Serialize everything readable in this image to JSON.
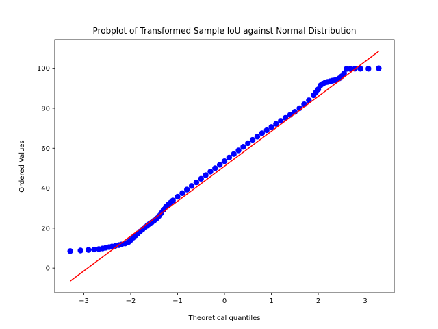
{
  "chart_data": {
    "type": "scatter",
    "title": "Probplot of Transformed Sample IoU against Normal Distribution",
    "xlabel": "Theoretical quantiles",
    "ylabel": "Ordered Values",
    "xlim": [
      -3.62,
      3.62
    ],
    "ylim": [
      -12.3,
      114.3
    ],
    "xticks": [
      -3,
      -2,
      -1,
      0,
      1,
      2,
      3
    ],
    "xtick_labels": [
      "−3",
      "−2",
      "−1",
      "0",
      "1",
      "2",
      "3"
    ],
    "yticks": [
      0,
      20,
      40,
      60,
      80,
      100
    ],
    "ytick_labels": [
      "0",
      "20",
      "40",
      "60",
      "80",
      "100"
    ],
    "grid": false,
    "series": [
      {
        "kind": "points",
        "color": "#0000ff",
        "x": [
          -3.29,
          -3.07,
          -2.9,
          -2.78,
          -2.68,
          -2.6,
          -2.53,
          -2.46,
          -2.4,
          -2.33,
          -2.25,
          -2.2,
          -2.12,
          -2.05,
          -2.0,
          -1.95,
          -1.9,
          -1.85,
          -1.8,
          -1.75,
          -1.7,
          -1.65,
          -1.6,
          -1.55,
          -1.5,
          -1.45,
          -1.4,
          -1.35,
          -1.3,
          -1.25,
          -1.2,
          -1.15,
          -1.1,
          -1.0,
          -0.9,
          -0.8,
          -0.7,
          -0.6,
          -0.5,
          -0.4,
          -0.3,
          -0.2,
          -0.1,
          0.0,
          0.1,
          0.2,
          0.3,
          0.4,
          0.5,
          0.6,
          0.7,
          0.8,
          0.9,
          1.0,
          1.1,
          1.2,
          1.3,
          1.4,
          1.5,
          1.6,
          1.7,
          1.8,
          1.9,
          1.95,
          2.0,
          2.05,
          2.1,
          2.15,
          2.2,
          2.25,
          2.3,
          2.35,
          2.4,
          2.45,
          2.5,
          2.55,
          2.6,
          2.68,
          2.78,
          2.9,
          3.07,
          3.29
        ],
        "y": [
          8.5,
          8.8,
          9.1,
          9.3,
          9.5,
          9.8,
          10.2,
          10.5,
          10.8,
          11.1,
          11.5,
          11.8,
          12.3,
          13.0,
          14.0,
          15.2,
          16.3,
          17.3,
          18.3,
          19.3,
          20.3,
          21.2,
          22.1,
          22.9,
          23.8,
          24.8,
          26.0,
          27.5,
          29.2,
          30.7,
          31.8,
          32.8,
          33.8,
          35.7,
          37.5,
          39.3,
          41.1,
          42.9,
          44.7,
          46.5,
          48.3,
          50.0,
          51.7,
          53.5,
          55.3,
          57.1,
          58.9,
          60.7,
          62.5,
          64.2,
          65.8,
          67.5,
          69.0,
          70.6,
          72.2,
          73.7,
          75.2,
          76.7,
          78.2,
          80.0,
          82.0,
          84.0,
          86.5,
          88.0,
          89.5,
          91.5,
          92.3,
          92.9,
          93.2,
          93.5,
          93.8,
          94.0,
          94.3,
          95.0,
          96.0,
          97.5,
          99.7,
          99.7,
          99.8,
          99.8,
          99.8,
          100.0
        ]
      },
      {
        "kind": "fit-line",
        "color": "#ff0000",
        "x": [
          -3.29,
          3.29
        ],
        "y": [
          -6.5,
          108.5
        ]
      }
    ]
  }
}
